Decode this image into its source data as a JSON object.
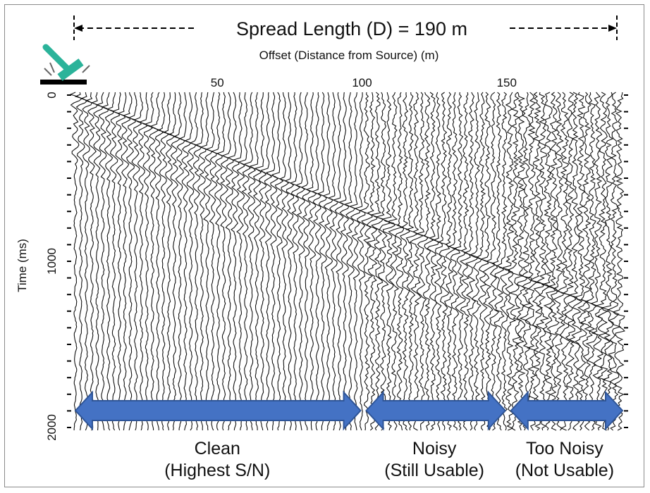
{
  "chart_data": {
    "type": "seismic-record",
    "title": "Spread Length (D) = 190 m",
    "xlabel": "Offset (Distance from Source) (m)",
    "ylabel": "Time (ms)",
    "x_ticks": [
      50,
      100,
      150
    ],
    "y_ticks": [
      0,
      1000,
      2000
    ],
    "xlim": [
      0,
      190
    ],
    "ylim": [
      0,
      2000
    ],
    "y_inverted": true,
    "trace_count": 100,
    "first_arrival": {
      "offset_m": [
        0,
        50,
        100,
        150
      ],
      "time_ms": [
        0,
        350,
        700,
        1050
      ]
    },
    "zones": [
      {
        "label": "Clean",
        "sublabel": "(Highest S/N)",
        "x_start": 0,
        "x_end": 100,
        "noise_level": 0.15
      },
      {
        "label": "Noisy",
        "sublabel": "(Still Usable)",
        "x_start": 100,
        "x_end": 150,
        "noise_level": 0.55
      },
      {
        "label": "Too Noisy",
        "sublabel": "(Not Usable)",
        "x_start": 150,
        "x_end": 190,
        "noise_level": 0.9
      }
    ],
    "colors": {
      "arrow": "#4472c4",
      "arrow_outline": "#2f5597",
      "hammer": "#2bb39a",
      "trace": "#111111"
    },
    "icons": [
      "hammer-source-icon"
    ]
  }
}
